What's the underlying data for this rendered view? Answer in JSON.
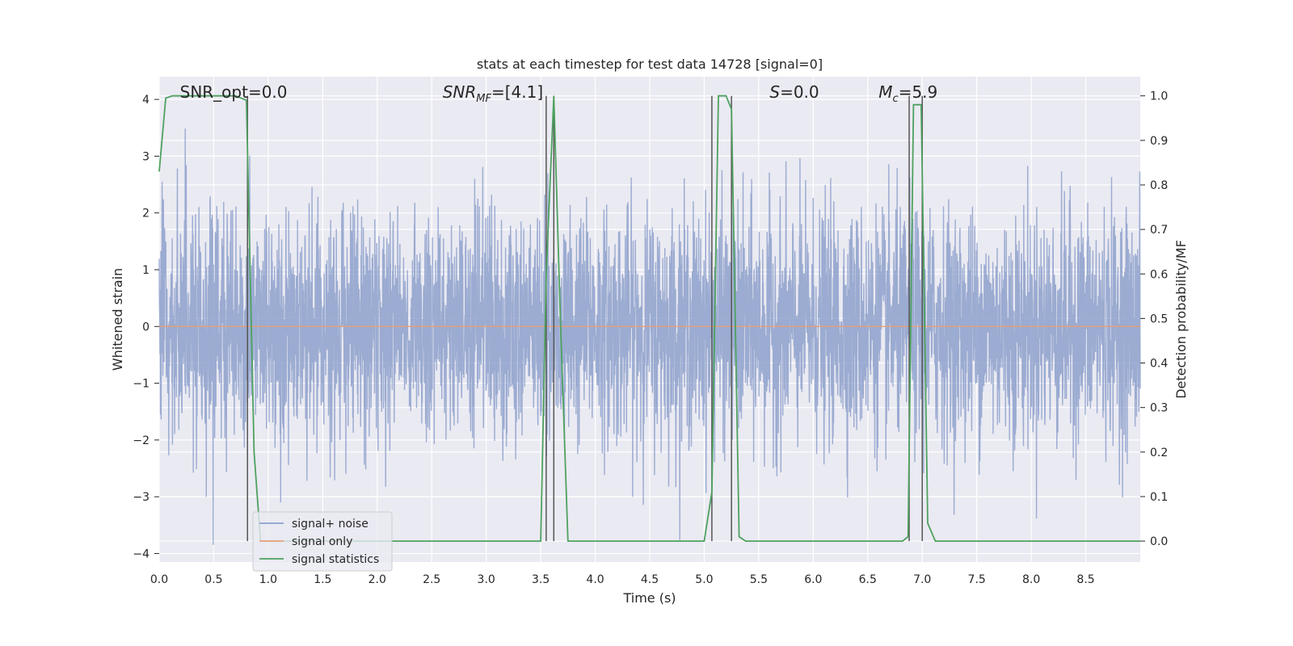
{
  "chart_data": {
    "type": "line",
    "title": "stats at each timestep for test data 14728 [signal=0]",
    "xlabel": "Time (s)",
    "ylabel": "Whitened strain",
    "y2label": "Detection probability/MF",
    "xlim": [
      0,
      9.0
    ],
    "ylim": [
      -4.15,
      4.4
    ],
    "y2lim": [
      -0.047,
      1.043
    ],
    "xticks": [
      0.0,
      0.5,
      1.0,
      1.5,
      2.0,
      2.5,
      3.0,
      3.5,
      4.0,
      4.5,
      5.0,
      5.5,
      6.0,
      6.5,
      7.0,
      7.5,
      8.0,
      8.5
    ],
    "xtick_labels": [
      "0.0",
      "0.5",
      "1.0",
      "1.5",
      "2.0",
      "2.5",
      "3.0",
      "3.5",
      "4.0",
      "4.5",
      "5.0",
      "5.5",
      "6.0",
      "6.5",
      "7.0",
      "7.5",
      "8.0",
      "8.5"
    ],
    "yticks": [
      -4,
      -3,
      -2,
      -1,
      0,
      1,
      2,
      3,
      4
    ],
    "ytick_labels": [
      "−4",
      "−3",
      "−2",
      "−1",
      "0",
      "1",
      "2",
      "3",
      "4"
    ],
    "y2ticks": [
      0.0,
      0.1,
      0.2,
      0.3,
      0.4,
      0.5,
      0.6,
      0.7,
      0.8,
      0.9,
      1.0
    ],
    "y2tick_labels": [
      "0.0",
      "0.1",
      "0.2",
      "0.3",
      "0.4",
      "0.5",
      "0.6",
      "0.7",
      "0.8",
      "0.9",
      "1.0"
    ],
    "grid": true,
    "legend_position": "lower-left",
    "annotations": [
      {
        "text": "SNR_opt=0.0",
        "x": 0.19
      },
      {
        "text": "SNR_MF=[4.1]",
        "x": 2.6
      },
      {
        "text": "S=0.0",
        "x": 5.6
      },
      {
        "text": "M_c=5.9",
        "x": 6.6
      }
    ],
    "series": [
      {
        "name": "signal+ noise",
        "color": "#8da0cb",
        "kind": "noise",
        "noise_std": 1.0,
        "n_points": 4000,
        "axis": "left"
      },
      {
        "name": "signal only",
        "color": "#e5a078",
        "kind": "flat",
        "value": 0.0,
        "axis": "left"
      },
      {
        "name": "signal statistics",
        "color": "#4ea15f",
        "axis": "right",
        "x": [
          0.0,
          0.06,
          0.12,
          0.3,
          0.5,
          0.7,
          0.8,
          0.87,
          0.93,
          1.5,
          2.5,
          3.5,
          3.55,
          3.62,
          3.68,
          3.75,
          4.0,
          4.5,
          5.0,
          5.07,
          5.13,
          5.2,
          5.25,
          5.32,
          5.38,
          6.0,
          6.5,
          6.82,
          6.87,
          6.92,
          6.99,
          7.05,
          7.12,
          8.0,
          9.0
        ],
        "y": [
          0.83,
          0.995,
          1.0,
          1.0,
          1.0,
          1.0,
          0.99,
          0.2,
          0.0,
          0.0,
          0.0,
          0.0,
          0.6,
          1.0,
          0.5,
          0.0,
          0.0,
          0.0,
          0.0,
          0.11,
          1.0,
          1.0,
          0.97,
          0.01,
          0.0,
          0.0,
          0.0,
          0.0,
          0.01,
          0.98,
          0.98,
          0.04,
          0.0,
          0.0,
          0.0
        ]
      }
    ],
    "vlines": [
      {
        "x": 0.81,
        "color": "#555555"
      },
      {
        "x": 3.55,
        "color": "#555555"
      },
      {
        "x": 3.62,
        "color": "#555555"
      },
      {
        "x": 5.07,
        "color": "#555555"
      },
      {
        "x": 5.25,
        "color": "#555555"
      },
      {
        "x": 6.88,
        "color": "#555555"
      },
      {
        "x": 7.0,
        "color": "#555555"
      }
    ],
    "colors": {
      "axes_bg": "#eaeaf2",
      "grid": "#ffffff",
      "text": "#262626"
    }
  }
}
